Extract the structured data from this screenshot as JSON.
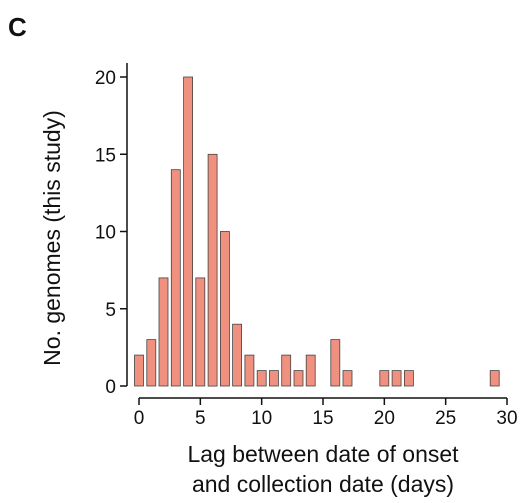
{
  "panel_label": "C",
  "chart_data": {
    "type": "bar",
    "xlabel_line1": "Lag between date of onset",
    "xlabel_line2": "and collection date (days)",
    "ylabel": "No. genomes (this study)",
    "x": [
      0,
      1,
      2,
      3,
      4,
      5,
      6,
      7,
      8,
      9,
      10,
      11,
      12,
      13,
      14,
      16,
      17,
      20,
      21,
      22,
      29
    ],
    "values": [
      2,
      3,
      7,
      14,
      20,
      7,
      15,
      10,
      4,
      2,
      1,
      1,
      2,
      1,
      2,
      3,
      1,
      1,
      1,
      1,
      1
    ],
    "xlim": [
      -1,
      30.5
    ],
    "ylim": [
      0,
      21
    ],
    "xticks": [
      0,
      5,
      10,
      15,
      20,
      25,
      30
    ],
    "yticks": [
      0,
      5,
      10,
      15,
      20
    ],
    "bar_color": "#F0907F",
    "bar_edge_color": "#444444",
    "grid": false
  }
}
